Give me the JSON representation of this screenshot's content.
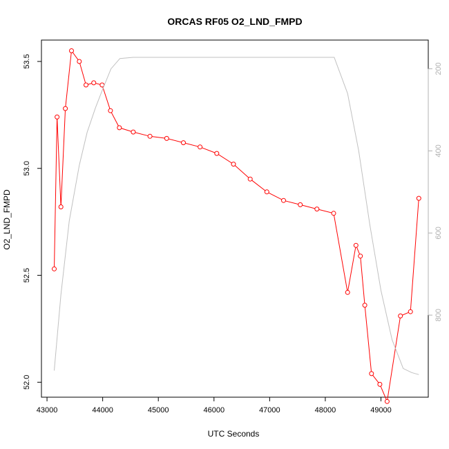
{
  "chart_data": {
    "type": "line",
    "title": "ORCAS RF05 O2_LND_FMPD",
    "xlabel": "UTC Seconds",
    "ylabel": "O2_LND_FMPD",
    "xlim": [
      42900,
      49850
    ],
    "ylim": [
      51.93,
      53.6
    ],
    "y2lim": [
      1000,
      130
    ],
    "y2_inverted": true,
    "x_ticks": [
      43000,
      44000,
      45000,
      46000,
      47000,
      48000,
      49000
    ],
    "y_ticks": [
      52.0,
      52.5,
      53.0,
      53.5
    ],
    "y_tick_labels": [
      "52.0",
      "52.5",
      "53.0",
      "53.5"
    ],
    "y2_ticks": [
      200,
      400,
      600,
      800
    ],
    "grid": false,
    "series": [
      {
        "color": "#ff0000",
        "marker": "open-circle",
        "axis": "left",
        "x": [
          43130,
          43180,
          43250,
          43330,
          43440,
          43580,
          43700,
          43840,
          43990,
          44140,
          44300,
          44550,
          44850,
          45150,
          45450,
          45750,
          46050,
          46350,
          46650,
          46950,
          47250,
          47550,
          47850,
          48150,
          48400,
          48550,
          48630,
          48710,
          48830,
          48980,
          49110,
          49350,
          49530,
          49680
        ],
        "values": [
          52.53,
          53.24,
          52.82,
          53.28,
          53.55,
          53.5,
          53.39,
          53.4,
          53.39,
          53.27,
          53.19,
          53.17,
          53.15,
          53.14,
          53.12,
          53.1,
          53.07,
          53.02,
          52.95,
          52.89,
          52.85,
          52.83,
          52.81,
          52.79,
          52.42,
          52.64,
          52.59,
          52.36,
          52.04,
          51.99,
          51.91,
          52.31,
          52.33,
          52.86
        ]
      },
      {
        "color": "#c0c0c0",
        "marker": "none",
        "axis": "right",
        "x": [
          43130,
          43250,
          43400,
          43580,
          43720,
          43870,
          44000,
          44150,
          44310,
          44550,
          45000,
          46000,
          47000,
          48000,
          48160,
          48400,
          48600,
          48800,
          49000,
          49200,
          49400,
          49550,
          49680
        ],
        "values": [
          935,
          750,
          570,
          435,
          355,
          295,
          250,
          200,
          175,
          172,
          172,
          172,
          172,
          172,
          172,
          260,
          400,
          580,
          740,
          860,
          930,
          940,
          945
        ]
      }
    ]
  }
}
